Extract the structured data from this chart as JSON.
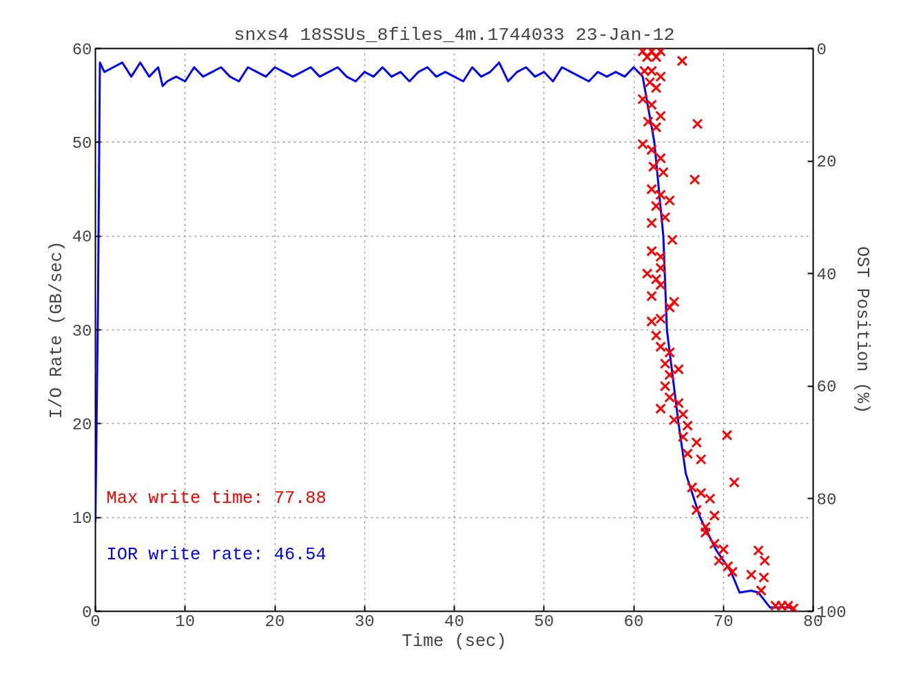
{
  "chart_data": {
    "type": "line",
    "title": "snxs4 18SSUs_8files_4m.1744033 23-Jan-12",
    "xlabel": "Time (sec)",
    "ylabel": "I/O Rate (GB/sec)",
    "y2label": "OST Position (%)",
    "xlim": [
      0,
      80
    ],
    "xticks": [
      0,
      10,
      20,
      30,
      40,
      50,
      60,
      70,
      80
    ],
    "ylim": [
      0,
      60
    ],
    "yticks": [
      0,
      10,
      20,
      30,
      40,
      50,
      60
    ],
    "y2lim": [
      100,
      0
    ],
    "y2ticks": [
      0,
      20,
      40,
      60,
      80,
      100
    ],
    "grid": true,
    "line_style": "solid",
    "annotations": [
      "Max write time: 77.88",
      "IOR write rate: 46.54"
    ],
    "series": [
      {
        "color": "#0000ff",
        "x": [
          0,
          0.3,
          0.5,
          1,
          2,
          3,
          4,
          5,
          6,
          7,
          7.5,
          8,
          9,
          10,
          11,
          12,
          13,
          14,
          15,
          16,
          17,
          18,
          19,
          20,
          21,
          22,
          23,
          24,
          25,
          26,
          27,
          28,
          29,
          30,
          31,
          32,
          33,
          34,
          35,
          36,
          37,
          38,
          39,
          40,
          41,
          42,
          43,
          44,
          45,
          46,
          47,
          48,
          49,
          50,
          51,
          52,
          53,
          54,
          55,
          56,
          57,
          58,
          59,
          60,
          61,
          62.3,
          63.3,
          63.7,
          65,
          65.8,
          67.4,
          69.2,
          70.8,
          71.8,
          73.1,
          73.9,
          75.2,
          77.7,
          77.9
        ],
        "values": [
          9.5,
          34,
          58.5,
          57.5,
          58,
          58.5,
          57,
          58.5,
          57,
          58,
          56,
          56.5,
          57,
          56.5,
          58,
          57,
          57.5,
          58,
          57,
          56.5,
          58,
          57.5,
          57,
          58,
          57.5,
          57,
          57.5,
          58,
          57,
          57.5,
          58,
          57,
          56.5,
          57.5,
          57,
          58,
          57,
          57.5,
          56.5,
          57.5,
          58,
          57,
          57.5,
          57,
          56.5,
          58,
          57,
          57.5,
          58.5,
          56.5,
          57.5,
          58,
          57,
          57.5,
          56.5,
          58,
          57.5,
          57,
          56.5,
          57.5,
          57,
          57.5,
          57,
          58,
          57,
          50,
          40,
          30,
          20,
          14.7,
          10,
          6.5,
          4.3,
          2,
          2.2,
          2,
          0.4,
          0.4,
          0
        ]
      },
      {
        "type": "scatter",
        "axis": "y2",
        "marker": "cross",
        "color": "#ff0000",
        "x": [
          61,
          62,
          63,
          61.5,
          62.5,
          65.4,
          61.2,
          62,
          63,
          61.8,
          62.5,
          61,
          62,
          63,
          61.6,
          62.5,
          67.1,
          61,
          62,
          63,
          62.2,
          63.3,
          66.8,
          62,
          63,
          62.5,
          64,
          63.5,
          62,
          64.3,
          62,
          63,
          61.5,
          63,
          62.5,
          63,
          62,
          64,
          63,
          62,
          64.5,
          62.5,
          63,
          64,
          63.5,
          65,
          64,
          63.5,
          64,
          65,
          63,
          64.5,
          65.5,
          66,
          65.5,
          67,
          66,
          67.5,
          70.4,
          71.2,
          66.5,
          67.5,
          68.5,
          67,
          69,
          68,
          68,
          69,
          70,
          69.5,
          70.5,
          71,
          73.9,
          74.6,
          73.1,
          74.5,
          74.2,
          75.8,
          76.5,
          77.2,
          77.8
        ],
        "values": [
          0.5,
          0.5,
          0.5,
          1.5,
          1.5,
          2.2,
          4,
          4,
          5,
          6,
          7,
          9,
          10,
          12,
          13,
          14,
          13.4,
          17,
          18,
          19.5,
          21,
          22,
          23.3,
          25,
          26,
          28,
          27,
          30,
          31,
          34,
          36,
          37,
          40,
          39,
          41,
          42,
          44,
          46,
          48,
          48.5,
          45,
          51,
          53,
          54,
          56,
          57,
          58,
          60,
          62,
          63,
          64,
          66,
          65,
          67,
          69,
          70,
          72,
          73,
          68.7,
          77.1,
          78,
          79,
          80,
          82,
          83,
          85,
          86,
          88,
          89,
          91,
          92,
          93,
          89.2,
          91,
          93.5,
          94,
          96.3,
          99,
          99,
          99,
          99.5
        ]
      }
    ]
  }
}
